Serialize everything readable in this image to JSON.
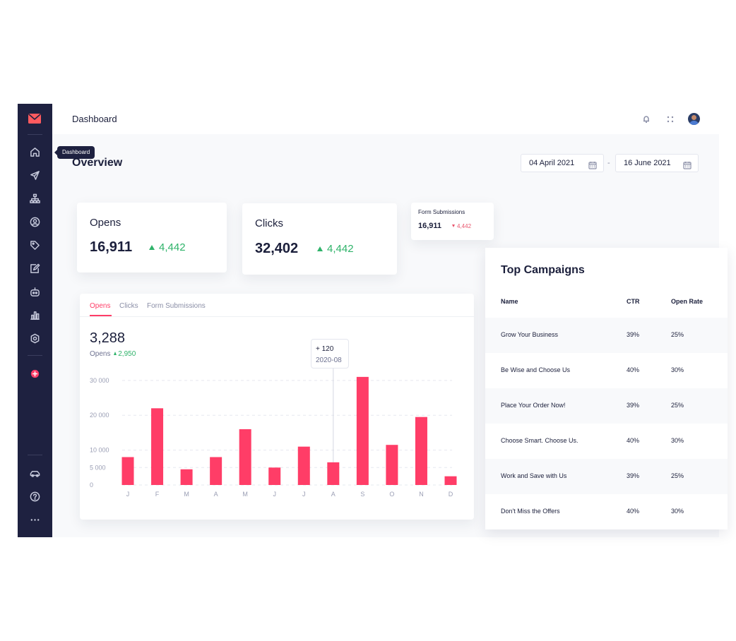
{
  "sidebar": {
    "logo": "mail-logo-icon",
    "tooltip": "Dashboard",
    "icons": [
      "home-icon",
      "send-icon",
      "sitemap-icon",
      "user-circle-icon",
      "tag-icon",
      "edit-icon",
      "robot-icon",
      "bar-chart-icon",
      "settings-icon",
      "add-icon",
      "car-icon",
      "help-icon",
      "more-icon"
    ]
  },
  "header": {
    "title": "Dashboard",
    "icons": [
      "bell-icon",
      "apps-icon",
      "avatar"
    ]
  },
  "overview": {
    "title": "Overview",
    "date_from": "04 April 2021",
    "date_separator": "-",
    "date_to": "16 June 2021"
  },
  "stats": [
    {
      "label": "Opens",
      "value": "16,911",
      "delta": "4,442",
      "trend": "up"
    },
    {
      "label": "Clicks",
      "value": "32,402",
      "delta": "4,442",
      "trend": "up"
    },
    {
      "label": "Form Submissions",
      "value": "16,911",
      "delta": "4,442",
      "trend": "down"
    }
  ],
  "chart_panel": {
    "tabs": [
      "Opens",
      "Clicks",
      "Form Submissions"
    ],
    "active_tab": "Opens",
    "big_value": "3,288",
    "sub_label": "Opens",
    "sub_delta": "2,950",
    "tooltip": {
      "value": "+ 120",
      "date": "2020-08"
    }
  },
  "chart_data": {
    "type": "bar",
    "categories": [
      "J",
      "F",
      "M",
      "A",
      "M",
      "J",
      "J",
      "A",
      "S",
      "O",
      "N",
      "D"
    ],
    "values": [
      8000,
      22000,
      4500,
      8000,
      16000,
      5000,
      11000,
      6500,
      31000,
      11500,
      19500,
      2500
    ],
    "ytick_labels": [
      "0",
      "5 000",
      "10 000",
      "20 000",
      "30 000"
    ],
    "ytick_values": [
      0,
      5000,
      10000,
      20000,
      30000
    ],
    "ylim": [
      0,
      33000
    ],
    "grid": true,
    "bar_color": "#ff3d67",
    "highlight_index": 7
  },
  "campaigns": {
    "title": "Top Campaigns",
    "columns": [
      "Name",
      "CTR",
      "Open Rate"
    ],
    "rows": [
      {
        "name": "Grow Your Business",
        "ctr": "39%",
        "open_rate": "25%"
      },
      {
        "name": "Be Wise and Choose Us",
        "ctr": "40%",
        "open_rate": "30%"
      },
      {
        "name": "Place Your Order Now!",
        "ctr": "39%",
        "open_rate": "25%"
      },
      {
        "name": "Choose Smart. Choose Us.",
        "ctr": "40%",
        "open_rate": "30%"
      },
      {
        "name": "Work and Save with Us",
        "ctr": "39%",
        "open_rate": "25%"
      },
      {
        "name": "Don't Miss the Offers",
        "ctr": "40%",
        "open_rate": "30%"
      }
    ]
  },
  "colors": {
    "sidebar": "#1e2140",
    "accent": "#ff3d67",
    "positive": "#2fb36a",
    "negative": "#e8556d"
  }
}
